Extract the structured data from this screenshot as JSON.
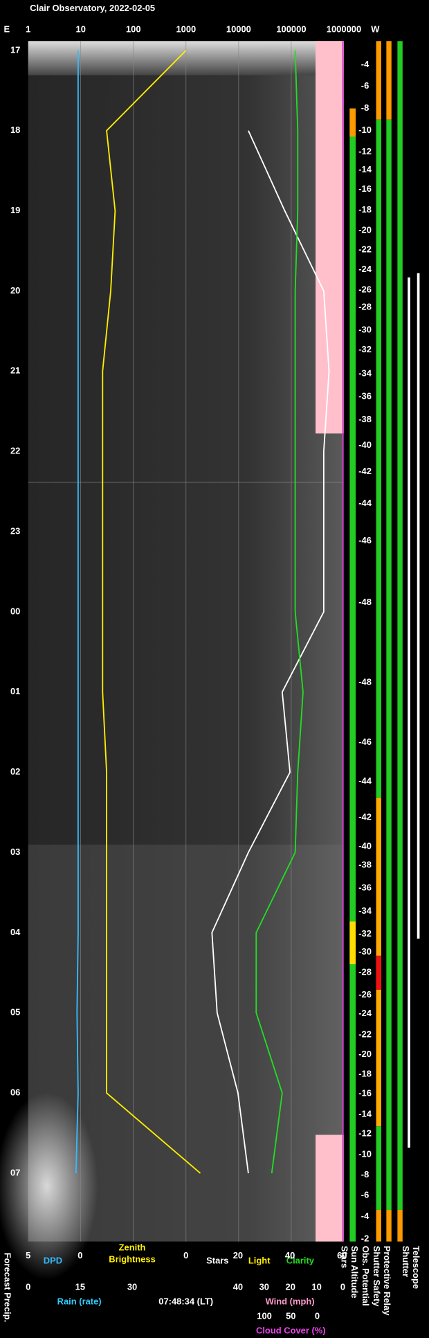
{
  "title": "Clair Observatory, 2022-02-05",
  "top_axis": {
    "left": "E",
    "right": "W",
    "ticks": [
      1,
      10,
      100,
      1000,
      10000,
      100000,
      1000000
    ]
  },
  "hours": [
    "17",
    "18",
    "19",
    "20",
    "21",
    "22",
    "23",
    "00",
    "01",
    "02",
    "03",
    "04",
    "05",
    "06",
    "07"
  ],
  "sun_altitude": [
    -4,
    -6,
    -8,
    -10,
    -12,
    -14,
    -16,
    -18,
    -20,
    -22,
    -24,
    -26,
    -28,
    -30,
    -32,
    -34,
    -36,
    -38,
    -40,
    -42,
    -44,
    -46,
    -48,
    -48,
    -46,
    -44,
    -42,
    -40,
    -38,
    -36,
    -34,
    -32,
    -30,
    -28,
    -26,
    -24,
    -22,
    -20,
    -18,
    -16,
    -14,
    -12,
    -10,
    -8,
    -6,
    -4,
    -2
  ],
  "series": [
    {
      "name": "DPD",
      "color": "#33bbff",
      "scale": "dpd",
      "values": [
        0.2,
        0.2,
        0.2,
        0.2,
        0.2,
        0.2,
        0.2,
        0.2,
        0.2,
        0.2,
        0.2,
        0.2,
        0.3,
        0.2,
        0.4
      ]
    },
    {
      "name": "Zenith Brightness",
      "color": "#ffee00",
      "scale": "log",
      "values": [
        1000,
        31,
        45,
        37,
        26,
        26,
        26,
        26,
        26,
        31,
        31,
        31,
        31,
        31,
        1870
      ]
    },
    {
      "name": "Stars",
      "color": "#ffffff",
      "scale": "linear",
      "values": [
        null,
        24,
        38,
        53,
        55,
        53,
        53,
        53,
        37,
        40,
        24,
        10,
        12,
        20,
        24
      ]
    },
    {
      "name": "Clarity",
      "color": "#22dd22",
      "scale": "linear",
      "values": [
        42,
        43,
        43,
        42,
        42,
        42,
        42,
        42,
        45,
        43,
        42,
        27,
        27,
        37,
        33
      ]
    }
  ],
  "bottom": {
    "dpd_ticks": [
      5,
      0
    ],
    "light": "Light",
    "stars_ticks": [
      0,
      20,
      40,
      60
    ],
    "rain": {
      "label": "Rain (rate)",
      "ticks": [
        0,
        15,
        30
      ]
    },
    "time": "07:48:34 (LT)",
    "wind": {
      "label": "Wind (mph)",
      "ticks": [
        40,
        30,
        20,
        10,
        0
      ]
    },
    "cloud": {
      "label": "Cloud Cover (%)",
      "ticks": [
        100,
        50,
        0
      ]
    },
    "forecast": "Forecast Precip."
  },
  "right_labels": [
    "Stars",
    "Sun Altitude",
    "Obs. Potential",
    "Shutter Safety",
    "Protective Relay",
    "Shutter",
    "Telescope"
  ]
}
